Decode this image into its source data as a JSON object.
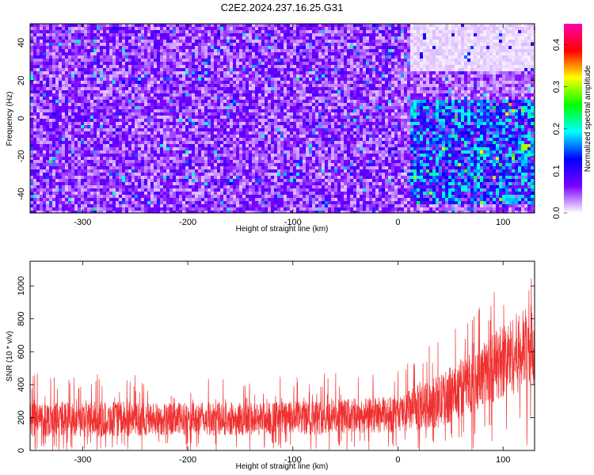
{
  "title": "C2E2.2024.237.16.25.G31",
  "chart_data": [
    {
      "type": "heatmap",
      "xlabel": "Height of straight line (km)",
      "ylabel": "Frequency (Hz)",
      "xlim": [
        -350,
        130
      ],
      "ylim": [
        -50,
        50
      ],
      "xticks": [
        -300,
        -200,
        -100,
        0,
        100
      ],
      "yticks": [
        -40,
        -20,
        0,
        20,
        40
      ],
      "colorbar": {
        "label": "Normalized spectral amplitude",
        "range": [
          0.0,
          0.45
        ],
        "ticks": [
          0.0,
          0.1,
          0.2,
          0.3,
          0.4
        ],
        "colormap": [
          "#ffffff",
          "#7a00ff",
          "#0000ff",
          "#00ffff",
          "#00ff00",
          "#ffff00",
          "#ff0000",
          "#ff00aa"
        ]
      },
      "regions": [
        {
          "x": [
            -350,
            0
          ],
          "y": [
            -50,
            50
          ],
          "level": 0.05
        },
        {
          "x": [
            10,
            130
          ],
          "y": [
            25,
            50
          ],
          "level": 0.01
        },
        {
          "x": [
            10,
            130
          ],
          "y": [
            -45,
            10
          ],
          "level": 0.12
        }
      ],
      "peak": {
        "x": 120,
        "y": -14,
        "level": 0.3
      }
    },
    {
      "type": "line",
      "xlabel": "Height of straight line (km)",
      "ylabel": "SNR (10 * v/v)",
      "xlim": [
        -350,
        130
      ],
      "ylim": [
        0,
        1150
      ],
      "xticks": [
        -300,
        -200,
        -100,
        0,
        100
      ],
      "yticks": [
        0,
        200,
        400,
        600,
        800,
        1000
      ],
      "color": "#f03030",
      "envelope": {
        "x": [
          -350,
          -300,
          -200,
          -100,
          0,
          20,
          40,
          60,
          80,
          100,
          130
        ],
        "lower": [
          80,
          80,
          90,
          90,
          110,
          120,
          140,
          200,
          260,
          320,
          380
        ],
        "upper": [
          300,
          300,
          290,
          300,
          330,
          400,
          460,
          560,
          650,
          780,
          900
        ],
        "max": [
          480,
          470,
          450,
          460,
          500,
          600,
          680,
          820,
          900,
          1050,
          1130
        ]
      }
    }
  ]
}
